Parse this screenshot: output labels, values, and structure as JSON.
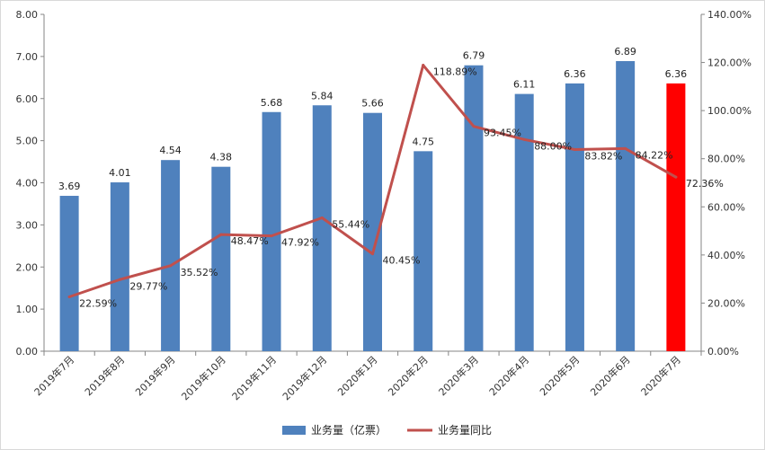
{
  "chart_data": {
    "type": "bar",
    "categories": [
      "2019年7月",
      "2019年8月",
      "2019年9月",
      "2019年10月",
      "2019年11月",
      "2019年12月",
      "2020年1月",
      "2020年2月",
      "2020年3月",
      "2020年4月",
      "2020年5月",
      "2020年6月",
      "2020年7月"
    ],
    "series": [
      {
        "name": "业务量（亿票）",
        "type": "bar",
        "axis": "left",
        "color": "#4f81bd",
        "highlight_color": "#ff0000",
        "highlight_index": 12,
        "values": [
          3.69,
          4.01,
          4.54,
          4.38,
          5.68,
          5.84,
          5.66,
          4.75,
          6.79,
          6.11,
          6.36,
          6.89,
          6.36
        ],
        "labels": [
          "3.69",
          "4.01",
          "4.54",
          "4.38",
          "5.68",
          "5.84",
          "5.66",
          "4.75",
          "6.79",
          "6.11",
          "6.36",
          "6.89",
          "6.36"
        ]
      },
      {
        "name": "业务量同比",
        "type": "line",
        "axis": "right",
        "color": "#c0504d",
        "values": [
          22.59,
          29.77,
          35.52,
          48.47,
          47.92,
          55.44,
          40.45,
          118.89,
          93.45,
          88.0,
          83.82,
          84.22,
          72.36
        ],
        "labels": [
          "22.59%",
          "29.77%",
          "35.52%",
          "48.47%",
          "47.92%",
          "55.44%",
          "40.45%",
          "118.89%",
          "93.45%",
          "88.00%",
          "83.82%",
          "84.22%",
          "72.36%"
        ]
      }
    ],
    "y_left": {
      "lim": [
        0,
        8
      ],
      "ticks": [
        "0.00",
        "1.00",
        "2.00",
        "3.00",
        "4.00",
        "5.00",
        "6.00",
        "7.00",
        "8.00"
      ]
    },
    "y_right": {
      "lim": [
        0,
        140
      ],
      "ticks": [
        "0.00%",
        "20.00%",
        "40.00%",
        "60.00%",
        "80.00%",
        "100.00%",
        "120.00%",
        "140.00%"
      ]
    },
    "grid": false,
    "legend": {
      "position": "bottom",
      "items": [
        "业务量（亿票）",
        "业务量同比"
      ]
    }
  }
}
